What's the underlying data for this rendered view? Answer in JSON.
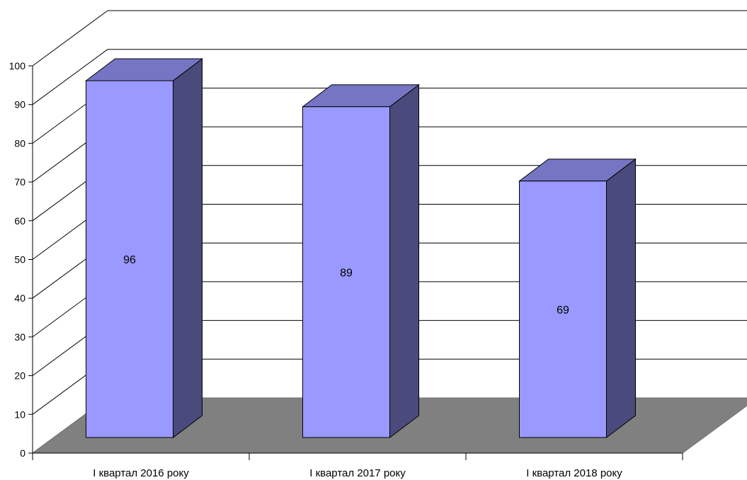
{
  "chart_data": {
    "type": "bar",
    "categories": [
      "I квартал 2016 року",
      "I квартал 2017 року",
      "I квартал 2018 року"
    ],
    "values": [
      96,
      89,
      69
    ],
    "data_labels": [
      "96",
      "89",
      "69"
    ],
    "title": "",
    "xlabel": "",
    "ylabel": "",
    "ylim": [
      0,
      100
    ],
    "yticks": [
      0,
      10,
      20,
      30,
      40,
      50,
      60,
      70,
      80,
      90,
      100
    ],
    "grid": true,
    "legend": "none",
    "style": "3d-column",
    "colors": {
      "bar_front": "#9999ff",
      "bar_top": "#7575c4",
      "bar_side": "#4a4a7c",
      "floor": "#808080",
      "gridline": "#000000",
      "background": "#ffffff"
    }
  }
}
